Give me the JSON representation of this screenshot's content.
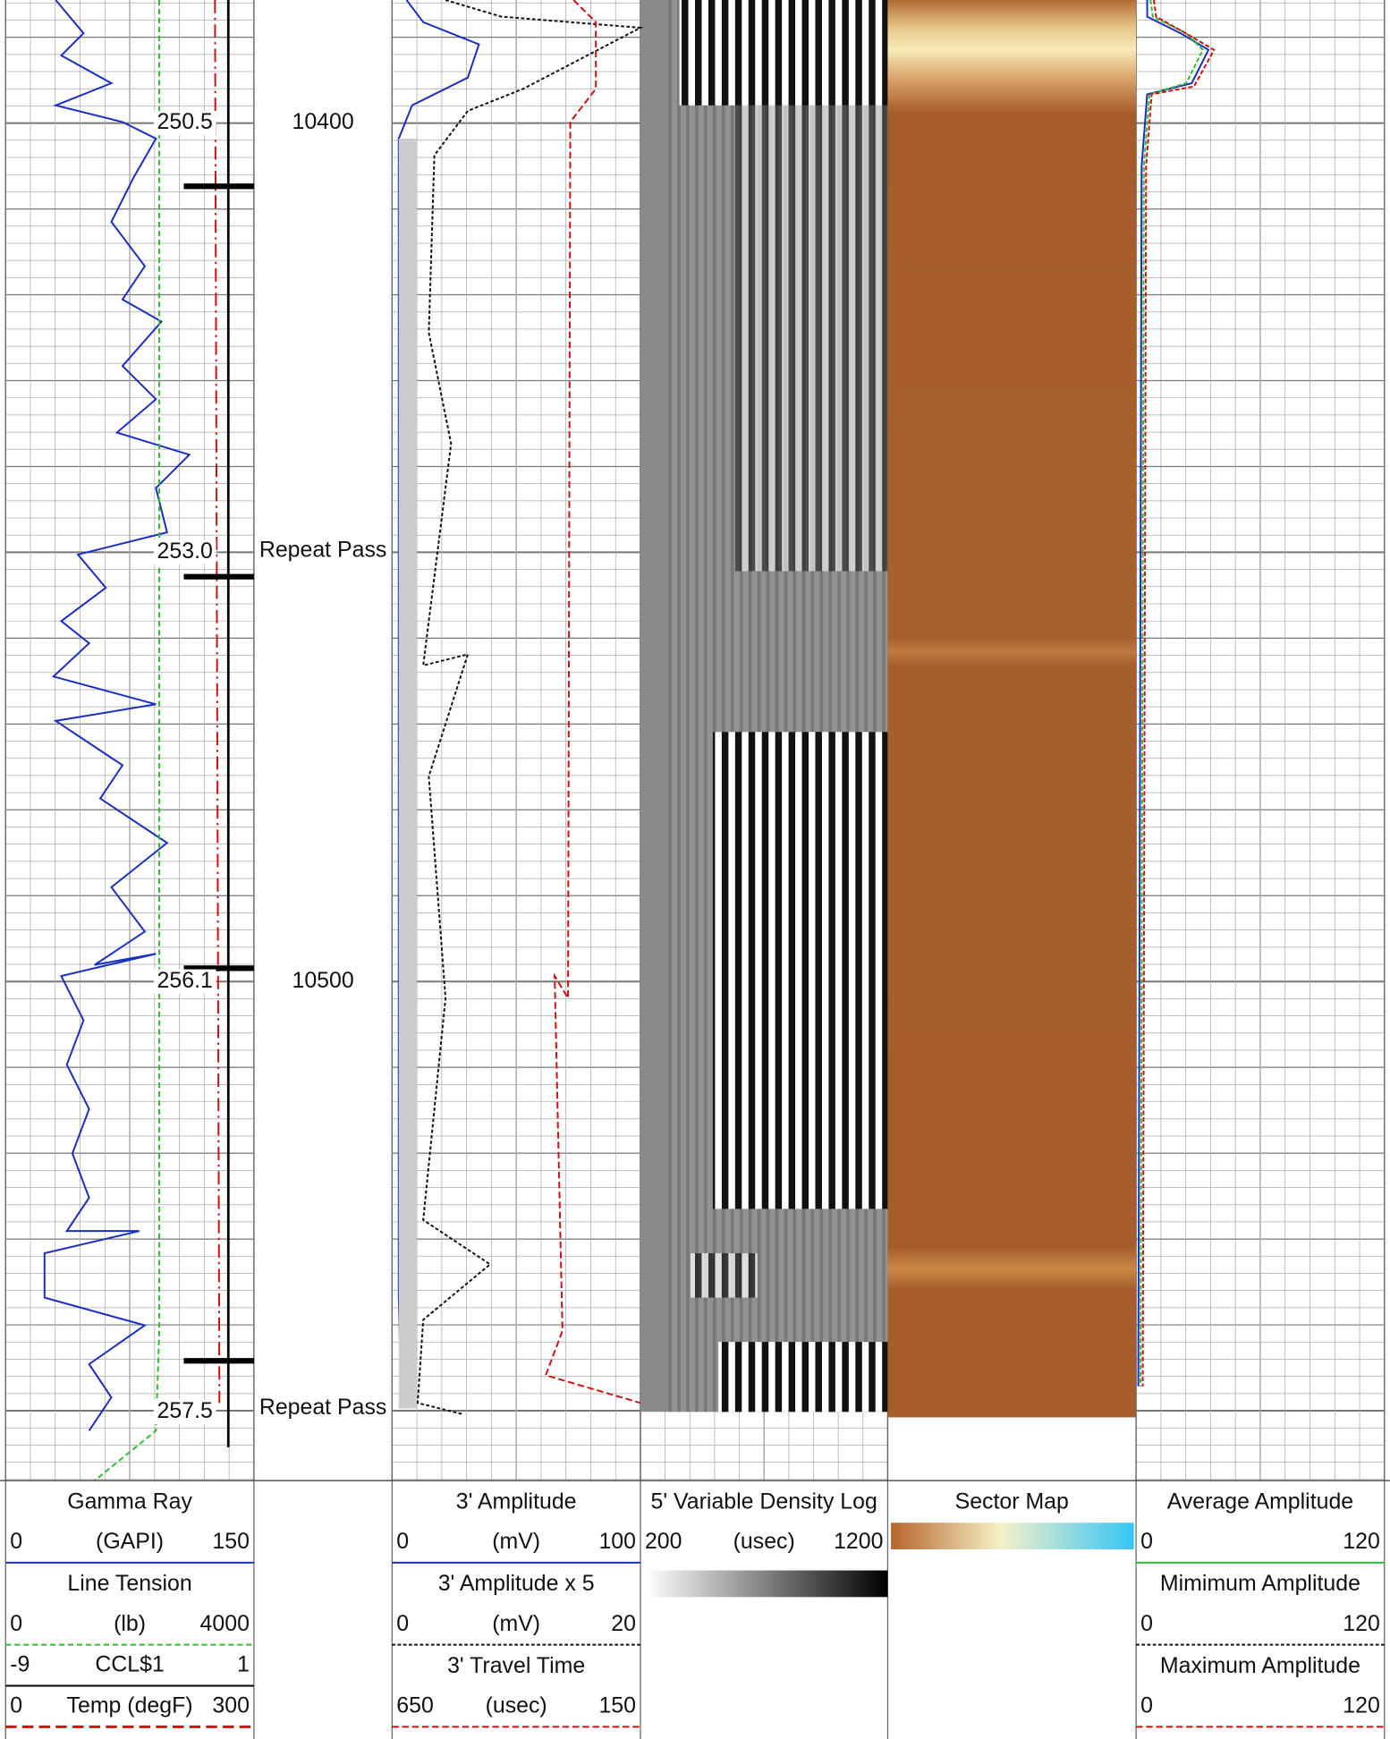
{
  "log": {
    "depth_labels": [
      "10400",
      "10500"
    ],
    "tension_labels": [
      "250.5",
      "253.0",
      "256.1",
      "257.5"
    ],
    "annotations": [
      "Repeat Pass",
      "Repeat Pass"
    ],
    "legend": {
      "track1": [
        {
          "name": "Gamma Ray",
          "left": "0",
          "unit": "(GAPI)",
          "right": "150"
        },
        {
          "name": "Line Tension",
          "left": "0",
          "unit": "(lb)",
          "right": "4000"
        },
        {
          "left": "-9",
          "unit": "CCL$1",
          "right": "1"
        },
        {
          "left": "0",
          "unit": "Temp (degF)",
          "right": "300"
        }
      ],
      "track2": [
        {
          "name": "3' Amplitude",
          "left": "0",
          "unit": "(mV)",
          "right": "100"
        },
        {
          "name": "3' Amplitude x 5",
          "left": "0",
          "unit": "(mV)",
          "right": "20"
        },
        {
          "name": "3' Travel Time",
          "left": "650",
          "unit": "(usec)",
          "right": "150"
        }
      ],
      "track3": [
        {
          "name": "5' Variable Density Log",
          "left": "200",
          "unit": "(usec)",
          "right": "1200"
        }
      ],
      "track4": [
        {
          "name": "Sector Map"
        }
      ],
      "track5": [
        {
          "name": "Average Amplitude",
          "left": "0",
          "right": "120"
        },
        {
          "name": "Mimimum Amplitude",
          "left": "0",
          "right": "120"
        },
        {
          "name": "Maximum Amplitude",
          "left": "0",
          "right": "120"
        }
      ]
    }
  }
}
